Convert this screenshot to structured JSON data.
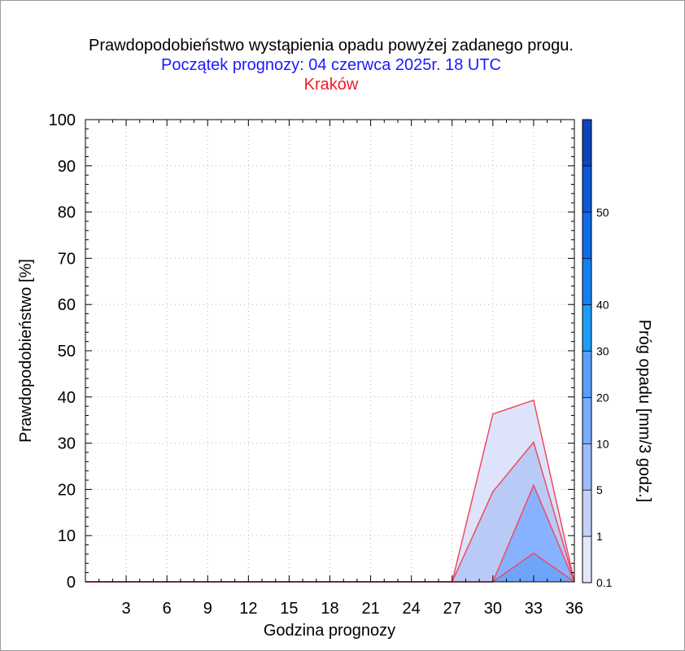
{
  "chart_data": {
    "type": "area",
    "title": "Prawdopodobieństwo wystąpienia opadu powyżej zadanego progu.",
    "subtitle": "Początek prognozy: 04 czerwca 2025r. 18 UTC",
    "location": "Kraków",
    "xlabel": "Godzina prognozy",
    "ylabel": "Prawdopodobieństwo [%]",
    "xlim": [
      0,
      36
    ],
    "ylim": [
      0,
      100
    ],
    "x_ticks": [
      3,
      6,
      9,
      12,
      15,
      18,
      21,
      24,
      27,
      30,
      33,
      36
    ],
    "y_ticks": [
      0,
      10,
      20,
      30,
      40,
      50,
      60,
      70,
      80,
      90,
      100
    ],
    "x": [
      0,
      3,
      6,
      9,
      12,
      15,
      18,
      21,
      24,
      27,
      30,
      33,
      36
    ],
    "series": [
      {
        "threshold": 0.1,
        "color": "#dde3fb",
        "values": [
          0,
          0,
          0,
          0,
          0,
          0,
          0,
          0,
          0,
          0,
          36.3,
          39.3,
          0
        ]
      },
      {
        "threshold": 1,
        "color": "#bacaf6",
        "values": [
          0,
          0,
          0,
          0,
          0,
          0,
          0,
          0,
          0,
          0,
          19.5,
          30.2,
          0
        ]
      },
      {
        "threshold": 5,
        "color": "#88b2ff",
        "values": [
          0,
          0,
          0,
          0,
          0,
          0,
          0,
          0,
          0,
          0,
          0,
          20.9,
          0
        ]
      },
      {
        "threshold": 10,
        "color": "#6ea5fb",
        "values": [
          0,
          0,
          0,
          0,
          0,
          0,
          0,
          0,
          0,
          0,
          0,
          6.2,
          0
        ]
      }
    ],
    "line_color": "#ee4b60",
    "grid": true,
    "colorbar": {
      "label": "Próg opadu [mm/3 godz.]",
      "tick_labels": [
        "0.1",
        "1",
        "5",
        "10",
        "20",
        "30",
        "40",
        "50"
      ],
      "segments": [
        {
          "from": "0.1",
          "color": "#e4e8fb"
        },
        {
          "from": "1",
          "color": "#c5d0f8"
        },
        {
          "from": "5",
          "color": "#9fbcfa"
        },
        {
          "from": "10",
          "color": "#7aabfd"
        },
        {
          "from": "20",
          "color": "#5a9ffc"
        },
        {
          "from": "30",
          "color": "#1e9cfa"
        },
        {
          "from": "40",
          "color": "#1480f0"
        },
        {
          "from": "",
          "color": "#0f6ce6"
        },
        {
          "from": "50",
          "color": "#0c58d6"
        },
        {
          "from": "",
          "color": "#0a46b8"
        }
      ]
    }
  }
}
